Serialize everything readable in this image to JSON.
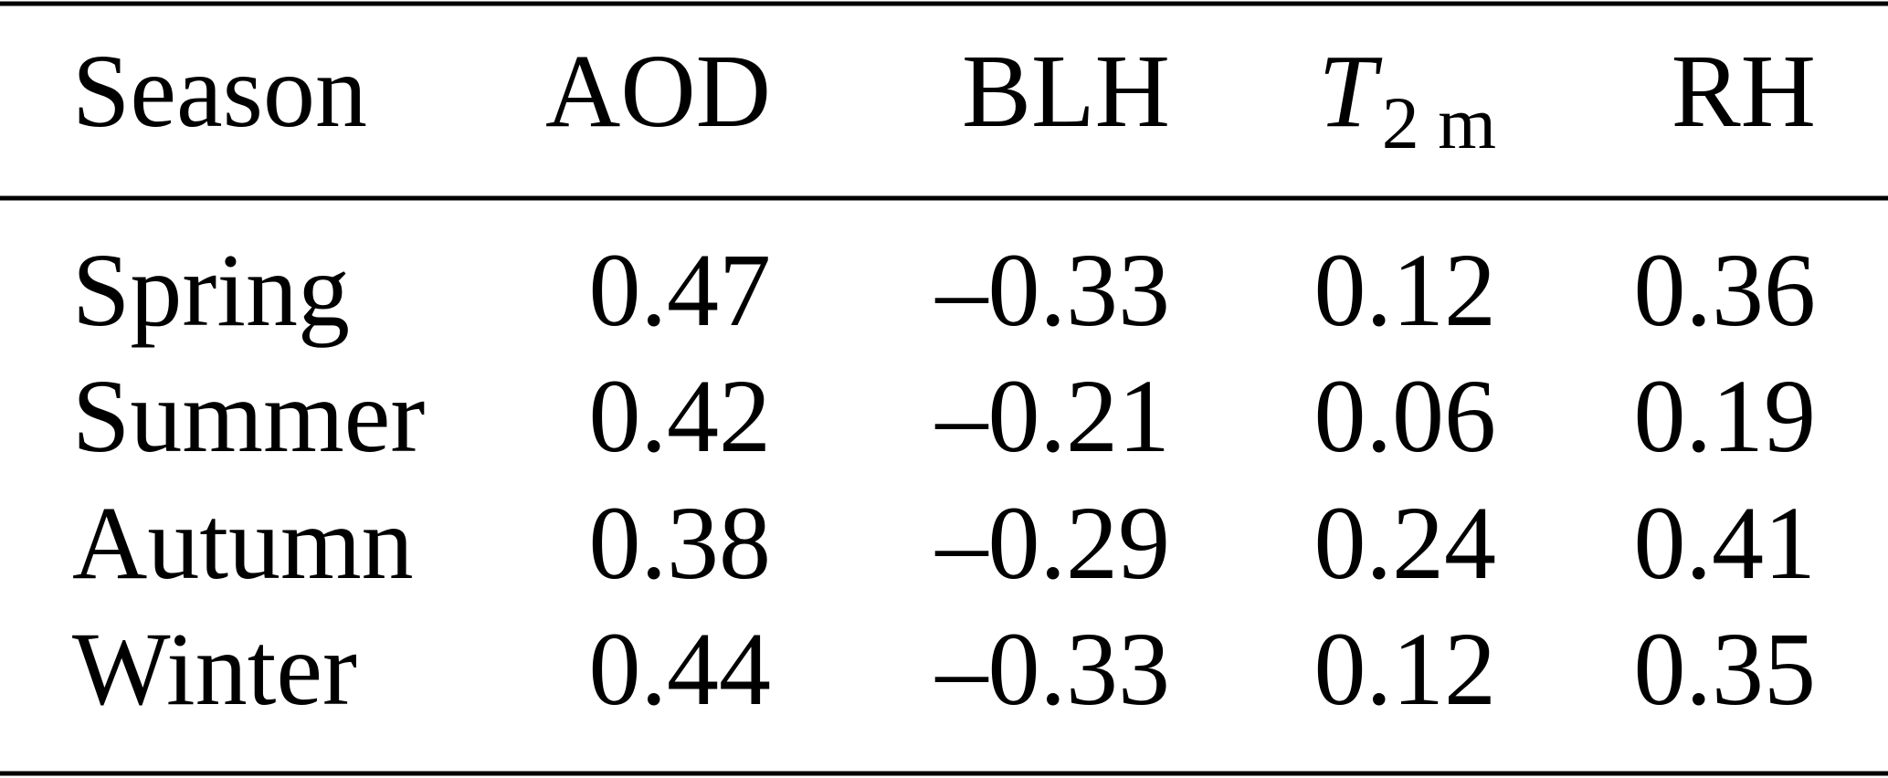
{
  "table": {
    "header": [
      "Season",
      "AOD",
      "BLH",
      {
        "symbol": "T",
        "subscript": "2 m"
      },
      "RH"
    ],
    "rows": [
      [
        "Spring",
        "0.47",
        "–0.33",
        "0.12",
        "0.36"
      ],
      [
        "Summer",
        "0.42",
        "–0.21",
        "0.06",
        "0.19"
      ],
      [
        "Autumn",
        "0.38",
        "–0.29",
        "0.24",
        "0.41"
      ],
      [
        "Winter",
        "0.44",
        "–0.33",
        "0.12",
        "0.35"
      ]
    ]
  }
}
